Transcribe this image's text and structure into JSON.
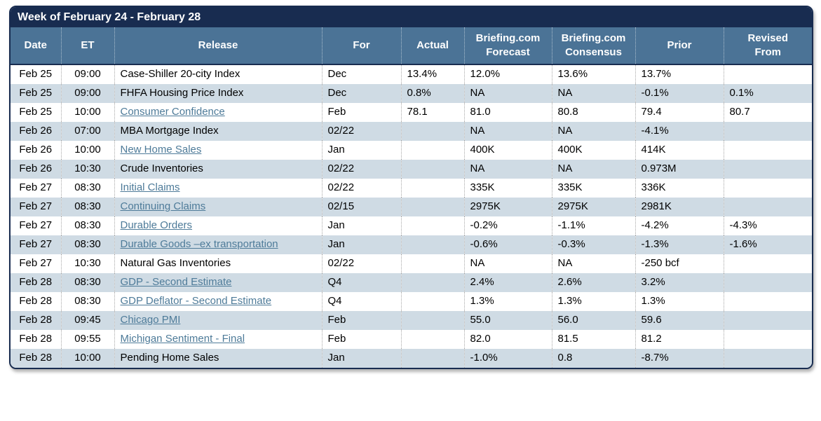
{
  "title": "Week of February 24 - February 28",
  "colors": {
    "title_bar": "#182c50",
    "header_bg": "#4b7396",
    "alt_row_bg": "#cfdbe4",
    "link": "#4e7b99",
    "header_text": "#ffffff",
    "body_text": "#000000"
  },
  "table": {
    "columns": [
      {
        "key": "date",
        "lines": [
          "Date"
        ]
      },
      {
        "key": "et",
        "lines": [
          "ET"
        ]
      },
      {
        "key": "release",
        "lines": [
          "Release"
        ]
      },
      {
        "key": "for",
        "lines": [
          "For"
        ]
      },
      {
        "key": "actual",
        "lines": [
          "Actual"
        ]
      },
      {
        "key": "forecast",
        "lines": [
          "Briefing.com",
          "Forecast"
        ]
      },
      {
        "key": "consensus",
        "lines": [
          "Briefing.com",
          "Consensus"
        ]
      },
      {
        "key": "prior",
        "lines": [
          "Prior"
        ]
      },
      {
        "key": "revised",
        "lines": [
          "Revised",
          "From"
        ]
      }
    ],
    "rows": [
      {
        "date": "Feb 25",
        "et": "09:00",
        "release": "Case-Shiller 20-city Index",
        "is_link": false,
        "for": "Dec",
        "actual": "13.4%",
        "forecast": "12.0%",
        "consensus": "13.6%",
        "prior": "13.7%",
        "revised": ""
      },
      {
        "date": "Feb 25",
        "et": "09:00",
        "release": "FHFA Housing Price Index",
        "is_link": false,
        "for": "Dec",
        "actual": "0.8%",
        "forecast": "NA",
        "consensus": "NA",
        "prior": "-0.1%",
        "revised": "0.1%"
      },
      {
        "date": "Feb 25",
        "et": "10:00",
        "release": "Consumer Confidence",
        "is_link": true,
        "for": "Feb",
        "actual": "78.1",
        "forecast": "81.0",
        "consensus": "80.8",
        "prior": "79.4",
        "revised": "80.7"
      },
      {
        "date": "Feb 26",
        "et": "07:00",
        "release": "MBA Mortgage Index",
        "is_link": false,
        "for": "02/22",
        "actual": "",
        "forecast": "NA",
        "consensus": "NA",
        "prior": "-4.1%",
        "revised": ""
      },
      {
        "date": "Feb 26",
        "et": "10:00",
        "release": "New Home Sales",
        "is_link": true,
        "for": "Jan",
        "actual": "",
        "forecast": "400K",
        "consensus": "400K",
        "prior": "414K",
        "revised": ""
      },
      {
        "date": "Feb 26",
        "et": "10:30",
        "release": "Crude Inventories",
        "is_link": false,
        "for": "02/22",
        "actual": "",
        "forecast": "NA",
        "consensus": "NA",
        "prior": "0.973M",
        "revised": ""
      },
      {
        "date": "Feb 27",
        "et": "08:30",
        "release": "Initial Claims",
        "is_link": true,
        "for": "02/22",
        "actual": "",
        "forecast": "335K",
        "consensus": "335K",
        "prior": "336K",
        "revised": ""
      },
      {
        "date": "Feb 27",
        "et": "08:30",
        "release": "Continuing Claims",
        "is_link": true,
        "for": "02/15",
        "actual": "",
        "forecast": "2975K",
        "consensus": "2975K",
        "prior": "2981K",
        "revised": ""
      },
      {
        "date": "Feb 27",
        "et": "08:30",
        "release": "Durable Orders",
        "is_link": true,
        "for": "Jan",
        "actual": "",
        "forecast": "-0.2%",
        "consensus": "-1.1%",
        "prior": "-4.2%",
        "revised": "-4.3%"
      },
      {
        "date": "Feb 27",
        "et": "08:30",
        "release": "Durable Goods –ex transportation",
        "is_link": true,
        "for": "Jan",
        "actual": "",
        "forecast": "-0.6%",
        "consensus": "-0.3%",
        "prior": "-1.3%",
        "revised": "-1.6%"
      },
      {
        "date": "Feb 27",
        "et": "10:30",
        "release": "Natural Gas Inventories",
        "is_link": false,
        "for": "02/22",
        "actual": "",
        "forecast": "NA",
        "consensus": "NA",
        "prior": "-250 bcf",
        "revised": ""
      },
      {
        "date": "Feb 28",
        "et": "08:30",
        "release": "GDP - Second Estimate",
        "is_link": true,
        "for": "Q4",
        "actual": "",
        "forecast": "2.4%",
        "consensus": "2.6%",
        "prior": "3.2%",
        "revised": ""
      },
      {
        "date": "Feb 28",
        "et": "08:30",
        "release": "GDP Deflator - Second Estimate",
        "is_link": true,
        "for": "Q4",
        "actual": "",
        "forecast": "1.3%",
        "consensus": "1.3%",
        "prior": "1.3%",
        "revised": ""
      },
      {
        "date": "Feb 28",
        "et": "09:45",
        "release": "Chicago PMI",
        "is_link": true,
        "for": "Feb",
        "actual": "",
        "forecast": "55.0",
        "consensus": "56.0",
        "prior": "59.6",
        "revised": ""
      },
      {
        "date": "Feb 28",
        "et": "09:55",
        "release": "Michigan Sentiment - Final",
        "is_link": true,
        "for": "Feb",
        "actual": "",
        "forecast": "82.0",
        "consensus": "81.5",
        "prior": "81.2",
        "revised": ""
      },
      {
        "date": "Feb 28",
        "et": "10:00",
        "release": "Pending Home Sales",
        "is_link": false,
        "for": "Jan",
        "actual": "",
        "forecast": "-1.0%",
        "consensus": "0.8",
        "prior": "-8.7%",
        "revised": ""
      }
    ]
  }
}
